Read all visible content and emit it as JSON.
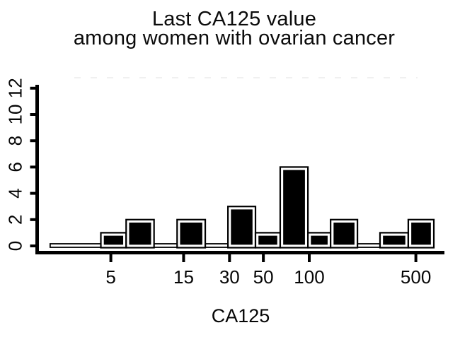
{
  "title": {
    "line1": "Last CA125 value",
    "line2": "among women with ovarian cancer"
  },
  "chart_data": {
    "type": "bar",
    "variant": "histogram",
    "title": "Last CA125 value among women with ovarian cancer",
    "xlabel": "CA125",
    "ylabel": "",
    "x_scale": "log10",
    "x_ticks": [
      5,
      15,
      30,
      50,
      100,
      500
    ],
    "y_ticks": [
      0,
      2,
      4,
      6,
      8,
      10,
      12
    ],
    "ylim": [
      0,
      12.3
    ],
    "xlim": [
      2,
      660
    ],
    "grid": false,
    "legend": false,
    "bin_edges": [
      2,
      4.3,
      6.3,
      9.6,
      13.6,
      20.8,
      29.3,
      44.4,
      64.5,
      98,
      138,
      207,
      291,
      446,
      656
    ],
    "counts": [
      0,
      1,
      2,
      0,
      2,
      0,
      3,
      1,
      6,
      1,
      2,
      0,
      1,
      2
    ],
    "bar_fill": "#000000",
    "bar_border": "#000000",
    "bar_inner_gap": "#ffffff",
    "axis_color": "#000000",
    "text_color": "#060606"
  }
}
